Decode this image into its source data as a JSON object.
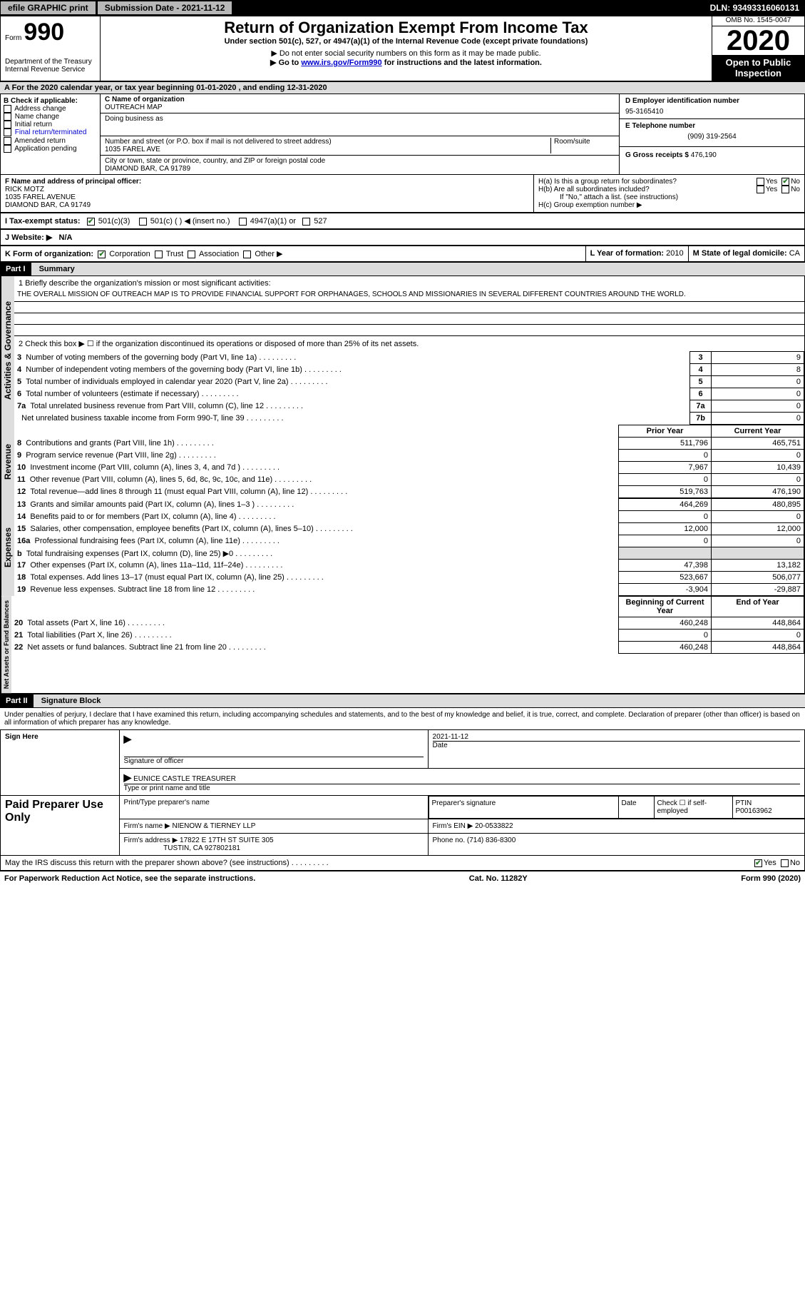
{
  "top": {
    "efile": "efile GRAPHIC print",
    "subdate_lbl": "Submission Date - ",
    "subdate": "2021-11-12",
    "dln_lbl": "DLN: ",
    "dln": "93493316060131"
  },
  "header": {
    "form_word": "Form",
    "form_num": "990",
    "dept": "Department of the Treasury\nInternal Revenue Service",
    "title": "Return of Organization Exempt From Income Tax",
    "sub1": "Under section 501(c), 527, or 4947(a)(1) of the Internal Revenue Code (except private foundations)",
    "sub2": "▶ Do not enter social security numbers on this form as it may be made public.",
    "sub3a": "▶ Go to ",
    "sub3_link": "www.irs.gov/Form990",
    "sub3b": " for instructions and the latest information.",
    "omb": "OMB No. 1545-0047",
    "year": "2020",
    "inspect": "Open to Public Inspection"
  },
  "rowA": "A For the 2020 calendar year, or tax year beginning 01-01-2020    , and ending 12-31-2020",
  "boxB": {
    "hdr": "B Check if applicable:",
    "items": [
      "Address change",
      "Name change",
      "Initial return",
      "Final return/terminated",
      "Amended return",
      "Application pending"
    ]
  },
  "boxC": {
    "name_lbl": "C Name of organization",
    "name": "OUTREACH MAP",
    "dba_lbl": "Doing business as",
    "addr_lbl": "Number and street (or P.O. box if mail is not delivered to street address)",
    "room_lbl": "Room/suite",
    "addr": "1035 FAREL AVE",
    "city_lbl": "City or town, state or province, country, and ZIP or foreign postal code",
    "city": "DIAMOND BAR, CA  91789"
  },
  "boxD": {
    "lbl": "D Employer identification number",
    "val": "95-3165410"
  },
  "boxE": {
    "lbl": "E Telephone number",
    "val": "(909) 319-2564"
  },
  "boxG": {
    "lbl": "G Gross receipts $",
    "val": "476,190"
  },
  "boxF": {
    "lbl": "F  Name and address of principal officer:",
    "name": "RICK MOTZ",
    "addr1": "1035 FAREL AVENUE",
    "addr2": "DIAMOND BAR, CA  91749"
  },
  "boxH": {
    "a": "H(a)  Is this a group return for subordinates?",
    "b": "H(b)  Are all subordinates included?",
    "note": "If \"No,\" attach a list. (see instructions)",
    "c": "H(c)  Group exemption number ▶",
    "yes": "Yes",
    "no": "No"
  },
  "rowI": {
    "lbl": "I    Tax-exempt status:",
    "opts": [
      "501(c)(3)",
      "501(c) (  ) ◀ (insert no.)",
      "4947(a)(1) or",
      "527"
    ]
  },
  "rowJ": {
    "lbl": "J   Website: ▶",
    "val": "N/A"
  },
  "rowK": {
    "lbl": "K Form of organization:",
    "opts": [
      "Corporation",
      "Trust",
      "Association",
      "Other ▶"
    ],
    "l_lbl": "L Year of formation: ",
    "l_val": "2010",
    "m_lbl": "M State of legal domicile: ",
    "m_val": "CA"
  },
  "part1": {
    "hdr": "Part I",
    "title": "Summary",
    "q1": "1  Briefly describe the organization's mission or most significant activities:",
    "mission": "THE OVERALL MISSION OF OUTREACH MAP IS TO PROVIDE FINANCIAL SUPPORT FOR ORPHANAGES, SCHOOLS AND MISSIONARIES IN SEVERAL DIFFERENT COUNTRIES AROUND THE WORLD.",
    "q2": "2    Check this box ▶ ☐  if the organization discontinued its operations or disposed of more than 25% of its net assets.",
    "vtabs": [
      "Activities & Governance",
      "Revenue",
      "Expenses",
      "Net Assets or Fund Balances"
    ],
    "gov_lines": [
      {
        "n": "3",
        "t": "Number of voting members of the governing body (Part VI, line 1a)",
        "c": "3",
        "v": "9"
      },
      {
        "n": "4",
        "t": "Number of independent voting members of the governing body (Part VI, line 1b)",
        "c": "4",
        "v": "8"
      },
      {
        "n": "5",
        "t": "Total number of individuals employed in calendar year 2020 (Part V, line 2a)",
        "c": "5",
        "v": "0"
      },
      {
        "n": "6",
        "t": "Total number of volunteers (estimate if necessary)",
        "c": "6",
        "v": "0"
      },
      {
        "n": "7a",
        "t": "Total unrelated business revenue from Part VIII, column (C), line 12",
        "c": "7a",
        "v": "0"
      },
      {
        "n": "",
        "t": "Net unrelated business taxable income from Form 990-T, line 39",
        "c": "7b",
        "v": "0"
      }
    ],
    "col_hdr_prior": "Prior Year",
    "col_hdr_curr": "Current Year",
    "rev_lines": [
      {
        "n": "8",
        "t": "Contributions and grants (Part VIII, line 1h)",
        "p": "511,796",
        "c": "465,751"
      },
      {
        "n": "9",
        "t": "Program service revenue (Part VIII, line 2g)",
        "p": "0",
        "c": "0"
      },
      {
        "n": "10",
        "t": "Investment income (Part VIII, column (A), lines 3, 4, and 7d )",
        "p": "7,967",
        "c": "10,439"
      },
      {
        "n": "11",
        "t": "Other revenue (Part VIII, column (A), lines 5, 6d, 8c, 9c, 10c, and 11e)",
        "p": "0",
        "c": "0"
      },
      {
        "n": "12",
        "t": "Total revenue—add lines 8 through 11 (must equal Part VIII, column (A), line 12)",
        "p": "519,763",
        "c": "476,190"
      }
    ],
    "exp_lines": [
      {
        "n": "13",
        "t": "Grants and similar amounts paid (Part IX, column (A), lines 1–3 )",
        "p": "464,269",
        "c": "480,895"
      },
      {
        "n": "14",
        "t": "Benefits paid to or for members (Part IX, column (A), line 4)",
        "p": "0",
        "c": "0"
      },
      {
        "n": "15",
        "t": "Salaries, other compensation, employee benefits (Part IX, column (A), lines 5–10)",
        "p": "12,000",
        "c": "12,000"
      },
      {
        "n": "16a",
        "t": "Professional fundraising fees (Part IX, column (A), line 11e)",
        "p": "0",
        "c": "0"
      },
      {
        "n": "b",
        "t": "Total fundraising expenses (Part IX, column (D), line 25) ▶0",
        "p": "",
        "c": "",
        "shade": true
      },
      {
        "n": "17",
        "t": "Other expenses (Part IX, column (A), lines 11a–11d, 11f–24e)",
        "p": "47,398",
        "c": "13,182"
      },
      {
        "n": "18",
        "t": "Total expenses. Add lines 13–17 (must equal Part IX, column (A), line 25)",
        "p": "523,667",
        "c": "506,077"
      },
      {
        "n": "19",
        "t": "Revenue less expenses. Subtract line 18 from line 12",
        "p": "-3,904",
        "c": "-29,887"
      }
    ],
    "col_hdr_begin": "Beginning of Current Year",
    "col_hdr_end": "End of Year",
    "net_lines": [
      {
        "n": "20",
        "t": "Total assets (Part X, line 16)",
        "p": "460,248",
        "c": "448,864"
      },
      {
        "n": "21",
        "t": "Total liabilities (Part X, line 26)",
        "p": "0",
        "c": "0"
      },
      {
        "n": "22",
        "t": "Net assets or fund balances. Subtract line 21 from line 20",
        "p": "460,248",
        "c": "448,864"
      }
    ]
  },
  "part2": {
    "hdr": "Part II",
    "title": "Signature Block",
    "decl": "Under penalties of perjury, I declare that I have examined this return, including accompanying schedules and statements, and to the best of my knowledge and belief, it is true, correct, and complete. Declaration of preparer (other than officer) is based on all information of which preparer has any knowledge.",
    "sign_here": "Sign Here",
    "sig_off": "Signature of officer",
    "sig_date": "2021-11-12",
    "date_lbl": "Date",
    "name_title": "EUNICE CASTLE  TREASURER",
    "name_title_lbl": "Type or print name and title",
    "paid": "Paid Preparer Use Only",
    "prep_name_lbl": "Print/Type preparer's name",
    "prep_sig_lbl": "Preparer's signature",
    "check_self": "Check ☐ if self-employed",
    "ptin_lbl": "PTIN",
    "ptin": "P00163962",
    "firm_name_lbl": "Firm's name   ▶ ",
    "firm_name": "NIENOW & TIERNEY LLP",
    "firm_ein_lbl": "Firm's EIN ▶ ",
    "firm_ein": "20-0533822",
    "firm_addr_lbl": "Firm's address ▶ ",
    "firm_addr": "17822 E 17TH ST SUITE 305",
    "firm_city": "TUSTIN, CA  927802181",
    "phone_lbl": "Phone no. ",
    "phone": "(714) 836-8300",
    "discuss": "May the IRS discuss this return with the preparer shown above? (see instructions)",
    "yes": "Yes",
    "no": "No"
  },
  "footer": {
    "left": "For Paperwork Reduction Act Notice, see the separate instructions.",
    "mid": "Cat. No. 11282Y",
    "right": "Form 990 (2020)"
  },
  "colors": {
    "bg": "#ffffff",
    "shade": "#dddddd",
    "black": "#000000",
    "link": "#0000cc",
    "check": "#2a7a2a"
  }
}
